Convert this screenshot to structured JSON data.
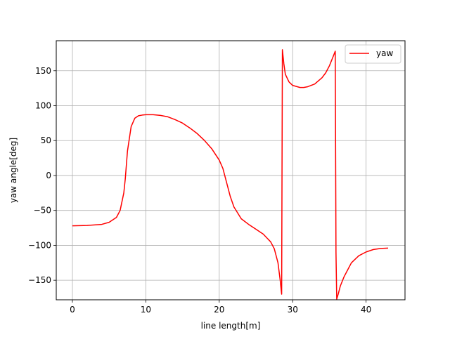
{
  "chart_data": {
    "type": "line",
    "title": "",
    "xlabel": "line length[m]",
    "ylabel": "yaw angle[deg]",
    "xlim": [
      -2.2,
      45.3
    ],
    "ylim": [
      -178,
      193
    ],
    "xticks": [
      0,
      10,
      20,
      30,
      40
    ],
    "yticks": [
      -150,
      -100,
      -50,
      0,
      50,
      100,
      150
    ],
    "xtick_labels": [
      "0",
      "10",
      "20",
      "30",
      "40"
    ],
    "ytick_labels": [
      "−150",
      "−100",
      "−50",
      "0",
      "50",
      "100",
      "150"
    ],
    "grid": true,
    "legend": {
      "placement": "top-right",
      "entries": [
        "yaw"
      ]
    },
    "series": [
      {
        "name": "yaw",
        "color": "#ff0000",
        "x": [
          0,
          2,
          4,
          5,
          6,
          6.5,
          7,
          7.2,
          7.5,
          8,
          8.5,
          9,
          9.5,
          10,
          10.5,
          11,
          12,
          13,
          14,
          15,
          16,
          17,
          18,
          19,
          20,
          20.5,
          21,
          21.5,
          22,
          23,
          24,
          25,
          26,
          27,
          27.5,
          28,
          28.3,
          28.5,
          28.6,
          28.8,
          29,
          29.5,
          30,
          31,
          31.5,
          32,
          33,
          34,
          34.5,
          35,
          35.5,
          35.8,
          35.9,
          36,
          36.2,
          36.5,
          37,
          37.5,
          38,
          38.5,
          39,
          40,
          41,
          42,
          43
        ],
        "values": [
          -72,
          -71.5,
          -70,
          -67,
          -60,
          -50,
          -25,
          -5,
          35,
          70,
          82,
          85.5,
          86.5,
          87,
          87,
          87,
          86,
          84,
          80,
          75,
          68,
          60,
          50,
          38,
          22,
          10,
          -10,
          -30,
          -45,
          -62,
          -70,
          -77,
          -84,
          -95,
          -105,
          -125,
          -150,
          -170,
          180,
          160,
          145,
          134,
          129,
          126,
          126,
          127,
          131,
          140,
          147,
          157,
          170,
          178,
          -110,
          -177,
          -170,
          -158,
          -145,
          -135,
          -125,
          -120,
          -115,
          -109.5,
          -106,
          -104.5,
          -104
        ]
      }
    ]
  }
}
